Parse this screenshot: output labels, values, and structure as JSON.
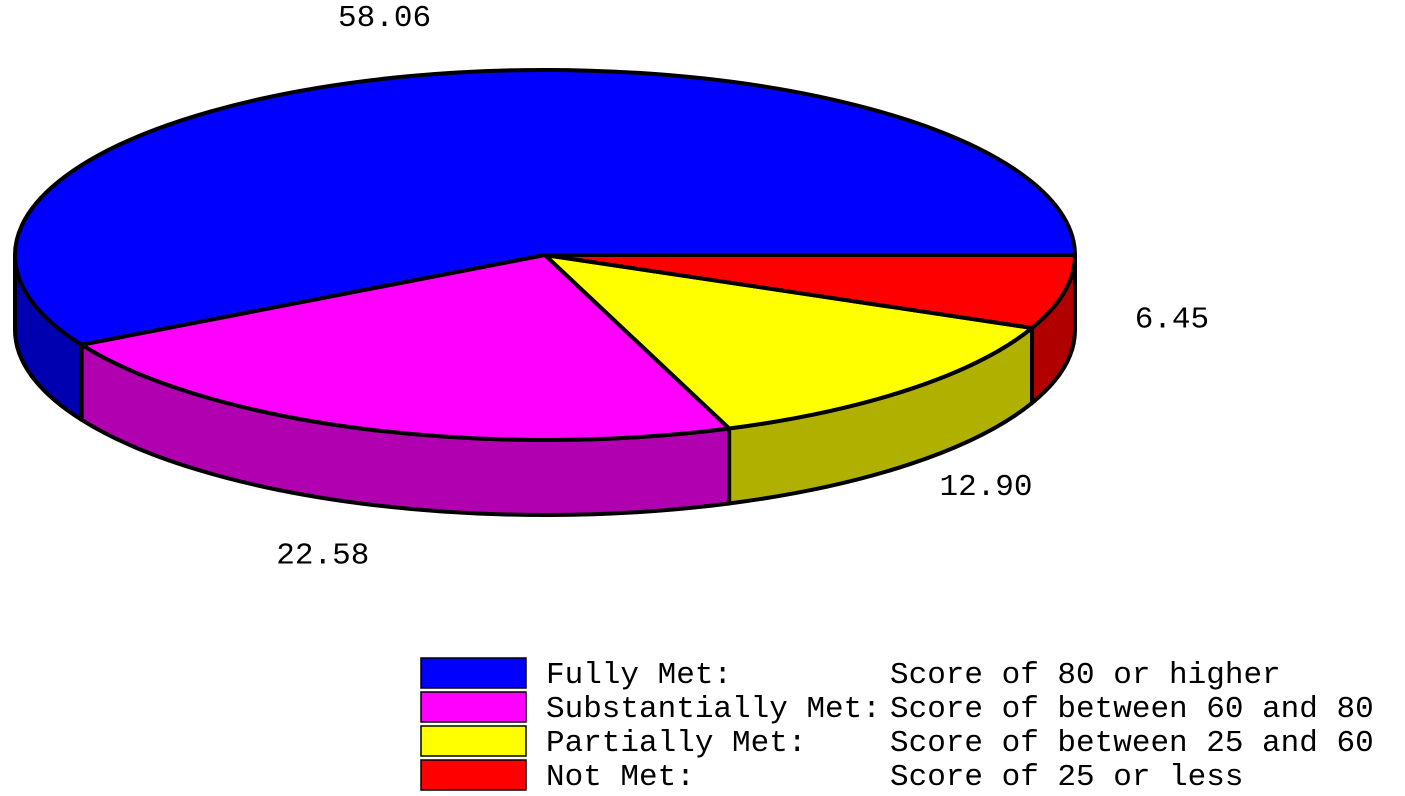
{
  "chart_data": {
    "type": "pie3d",
    "categories": [
      "Fully Met:",
      "Substantially Met:",
      "Partially Met:",
      "Not Met:"
    ],
    "descriptions": [
      "Score of 80 or higher",
      "Score of between 60 and 80",
      "Score of between 25 and 60",
      "Score of 25 or less"
    ],
    "values": [
      58.06,
      22.58,
      12.9,
      6.45
    ],
    "value_labels": [
      "58.06",
      "22.58",
      "12.90",
      "6.45"
    ],
    "colors": [
      "#0000ff",
      "#ff00ff",
      "#ffff00",
      "#ff0000"
    ]
  }
}
